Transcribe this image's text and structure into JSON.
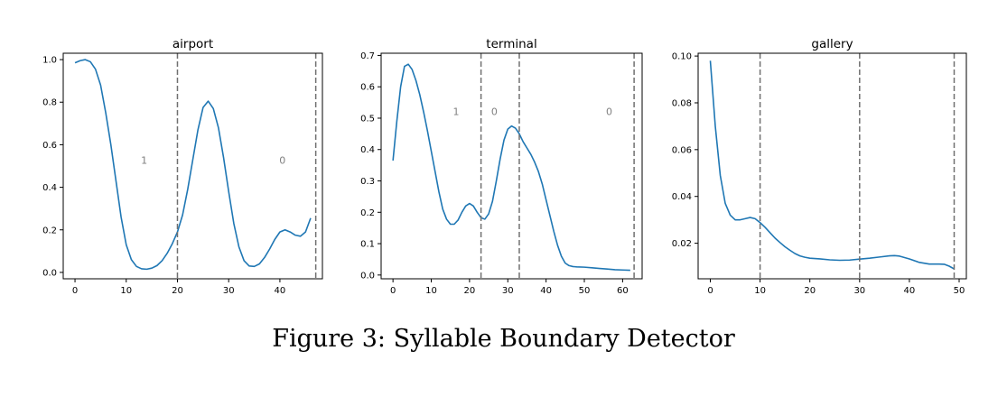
{
  "caption": "Figure 3: Syllable Boundary Detector",
  "colors": {
    "line": "#1f77b4",
    "boundary": "#707070",
    "segment_label": "#808080",
    "axes": "#000000"
  },
  "chart_data": [
    {
      "type": "line",
      "title": "airport",
      "xlim": [
        -2.3,
        48.3
      ],
      "ylim": [
        -0.03,
        1.03
      ],
      "xticks": [
        0,
        10,
        20,
        30,
        40
      ],
      "yticks": [
        0.0,
        0.2,
        0.4,
        0.6,
        0.8,
        1.0
      ],
      "ytick_labels": [
        "0.0",
        "0.2",
        "0.4",
        "0.6",
        "0.8",
        "1.0"
      ],
      "boundaries": [
        20,
        47
      ],
      "segment_labels": [
        {
          "x": 13.5,
          "y": 0.51,
          "text": "1"
        },
        {
          "x": 40.5,
          "y": 0.51,
          "text": "0"
        }
      ],
      "series": [
        {
          "x": [
            0,
            1,
            2,
            3,
            4,
            5,
            6,
            7,
            8,
            9,
            10,
            11,
            12,
            13,
            14,
            15,
            16,
            17,
            18,
            19,
            20,
            21,
            22,
            23,
            24,
            25,
            26,
            27,
            28,
            29,
            30,
            31,
            32,
            33,
            34,
            35,
            36,
            37,
            38,
            39,
            40,
            41,
            42,
            43,
            44,
            45,
            46
          ],
          "values": [
            0.985,
            0.995,
            1.0,
            0.99,
            0.955,
            0.88,
            0.75,
            0.6,
            0.43,
            0.26,
            0.13,
            0.06,
            0.028,
            0.017,
            0.015,
            0.02,
            0.032,
            0.055,
            0.09,
            0.135,
            0.19,
            0.27,
            0.39,
            0.53,
            0.67,
            0.775,
            0.805,
            0.77,
            0.68,
            0.54,
            0.38,
            0.23,
            0.12,
            0.055,
            0.03,
            0.028,
            0.04,
            0.07,
            0.11,
            0.155,
            0.19,
            0.2,
            0.19,
            0.175,
            0.17,
            0.19,
            0.255
          ]
        }
      ]
    },
    {
      "type": "line",
      "title": "terminal",
      "xlim": [
        -3.1,
        65.1
      ],
      "ylim": [
        -0.012,
        0.707
      ],
      "xticks": [
        0,
        10,
        20,
        30,
        40,
        50,
        60
      ],
      "yticks": [
        0.0,
        0.1,
        0.2,
        0.3,
        0.4,
        0.5,
        0.6,
        0.7
      ],
      "ytick_labels": [
        "0.0",
        "0.1",
        "0.2",
        "0.3",
        "0.4",
        "0.5",
        "0.6",
        "0.7"
      ],
      "boundaries": [
        23,
        33,
        63
      ],
      "segment_labels": [
        {
          "x": 16.5,
          "y": 0.51,
          "text": "1"
        },
        {
          "x": 26.5,
          "y": 0.51,
          "text": "0"
        },
        {
          "x": 56.5,
          "y": 0.51,
          "text": "0"
        }
      ],
      "series": [
        {
          "x": [
            0,
            1,
            2,
            3,
            4,
            5,
            6,
            7,
            8,
            9,
            10,
            11,
            12,
            13,
            14,
            15,
            16,
            17,
            18,
            19,
            20,
            21,
            22,
            23,
            24,
            25,
            26,
            27,
            28,
            29,
            30,
            31,
            32,
            33,
            34,
            35,
            36,
            37,
            38,
            39,
            40,
            41,
            42,
            43,
            44,
            45,
            46,
            47,
            48,
            50,
            52,
            54,
            56,
            58,
            60,
            62
          ],
          "values": [
            0.365,
            0.49,
            0.6,
            0.665,
            0.672,
            0.655,
            0.62,
            0.575,
            0.52,
            0.46,
            0.395,
            0.33,
            0.265,
            0.21,
            0.178,
            0.162,
            0.162,
            0.175,
            0.2,
            0.22,
            0.228,
            0.22,
            0.2,
            0.183,
            0.178,
            0.195,
            0.235,
            0.3,
            0.37,
            0.43,
            0.465,
            0.475,
            0.468,
            0.45,
            0.425,
            0.405,
            0.385,
            0.36,
            0.33,
            0.29,
            0.24,
            0.19,
            0.14,
            0.095,
            0.06,
            0.038,
            0.03,
            0.027,
            0.026,
            0.025,
            0.023,
            0.021,
            0.019,
            0.017,
            0.016,
            0.015
          ]
        }
      ]
    },
    {
      "type": "line",
      "title": "gallery",
      "xlim": [
        -2.45,
        51.45
      ],
      "ylim": [
        0.0048,
        0.1012
      ],
      "xticks": [
        0,
        10,
        20,
        30,
        40,
        50
      ],
      "yticks": [
        0.02,
        0.04,
        0.06,
        0.08,
        0.1
      ],
      "ytick_labels": [
        "0.02",
        "0.04",
        "0.06",
        "0.08",
        "0.10"
      ],
      "boundaries": [
        10,
        30,
        49
      ],
      "segment_labels": [],
      "series": [
        {
          "x": [
            0,
            1,
            2,
            3,
            4,
            5,
            6,
            7,
            8,
            9,
            10,
            11,
            12,
            13,
            14,
            15,
            16,
            17,
            18,
            19,
            20,
            22,
            24,
            26,
            28,
            30,
            32,
            34,
            36,
            37,
            38,
            40,
            42,
            44,
            46,
            47,
            48,
            49
          ],
          "values": [
            0.098,
            0.07,
            0.049,
            0.037,
            0.032,
            0.03,
            0.03,
            0.0305,
            0.031,
            0.0305,
            0.0288,
            0.0268,
            0.0245,
            0.0222,
            0.0203,
            0.0185,
            0.017,
            0.0156,
            0.0146,
            0.014,
            0.0136,
            0.0133,
            0.0129,
            0.0127,
            0.0128,
            0.0132,
            0.0136,
            0.0141,
            0.0146,
            0.0147,
            0.0145,
            0.0133,
            0.0118,
            0.0111,
            0.0111,
            0.011,
            0.0102,
            0.009
          ]
        }
      ]
    }
  ]
}
